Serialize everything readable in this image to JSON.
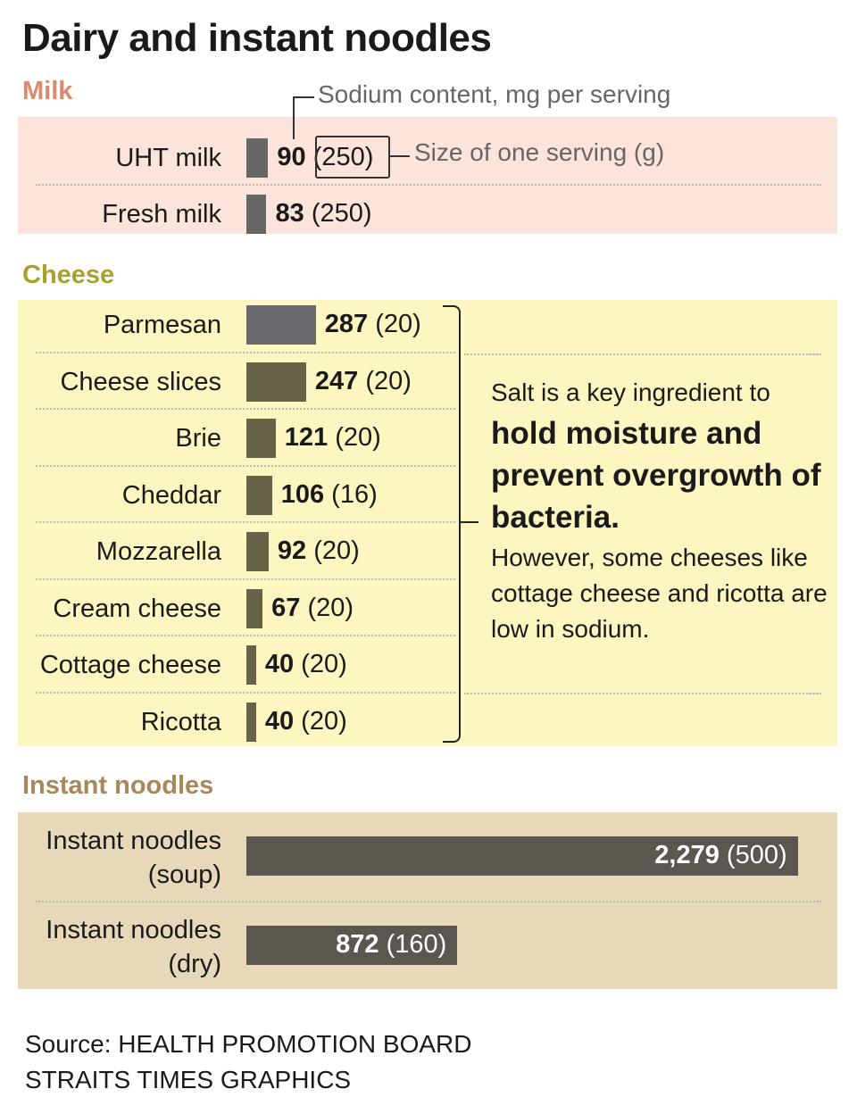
{
  "title": "Dairy and instant noodles",
  "annotations": {
    "sodium": "Sodium content, mg per serving",
    "serving": "Size of one serving (g)"
  },
  "colors": {
    "milk_bg": "#fce4da",
    "cheese_bg": "#fdf6c0",
    "noodle_bg": "#e6d8b8",
    "milk_head": "#d98a6f",
    "cheese_head": "#a9a12e",
    "noodle_head": "#a8875a",
    "milk_bar": "#666666",
    "parmesan_bar": "#6a6a6e",
    "cheese_bar": "#676347",
    "noodle_bar": "#5c5650"
  },
  "chart_data": {
    "type": "bar",
    "orientation": "horizontal",
    "xlabel": "Sodium content, mg per serving",
    "groups": [
      {
        "name": "Milk",
        "items": [
          {
            "label": "UHT milk",
            "value": 90,
            "serving": "(250)"
          },
          {
            "label": "Fresh milk",
            "value": 83,
            "serving": "(250)"
          }
        ]
      },
      {
        "name": "Cheese",
        "items": [
          {
            "label": "Parmesan",
            "value": 287,
            "serving": "(20)"
          },
          {
            "label": "Cheese slices",
            "value": 247,
            "serving": "(20)"
          },
          {
            "label": "Brie",
            "value": 121,
            "serving": "(20)"
          },
          {
            "label": "Cheddar",
            "value": 106,
            "serving": "(16)"
          },
          {
            "label": "Mozzarella",
            "value": 92,
            "serving": "(20)"
          },
          {
            "label": "Cream cheese",
            "value": 67,
            "serving": "(20)"
          },
          {
            "label": "Cottage cheese",
            "value": 40,
            "serving": "(20)"
          },
          {
            "label": "Ricotta",
            "value": 40,
            "serving": "(20)"
          }
        ]
      },
      {
        "name": "Instant noodles",
        "items": [
          {
            "label": "Instant noodles\n(soup)",
            "value": 2279,
            "display": "2,279",
            "serving": "(500)"
          },
          {
            "label": "Instant noodles\n(dry)",
            "value": 872,
            "display": "872",
            "serving": "(160)"
          }
        ]
      }
    ]
  },
  "cheese_note": {
    "intro": "Salt is a key ingredient to",
    "bold": "hold moisture and prevent overgrowth of bacteria.",
    "rest": "However, some cheeses like cottage cheese and ricotta are low in sodium."
  },
  "source": [
    "Source: HEALTH PROMOTION BOARD",
    "STRAITS TIMES GRAPHICS"
  ]
}
